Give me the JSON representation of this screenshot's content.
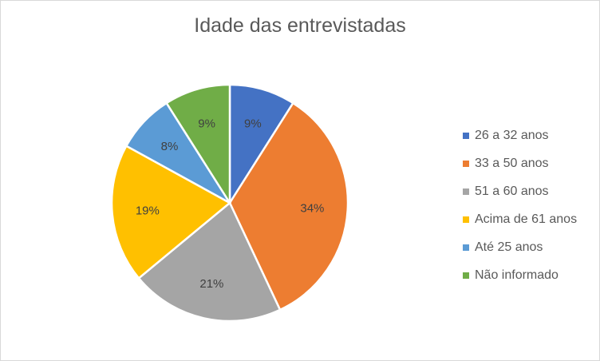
{
  "chart_data": {
    "type": "pie",
    "title": "Idade das entrevistadas",
    "slices": [
      {
        "name": "26 a 32 anos",
        "value": 9,
        "label": "9%",
        "color": "#4472C4"
      },
      {
        "name": "33 a 50 anos",
        "value": 34,
        "label": "34%",
        "color": "#ED7D31"
      },
      {
        "name": "51 a 60 anos",
        "value": 21,
        "label": "21%",
        "color": "#A5A5A5"
      },
      {
        "name": "Acima de 61 anos",
        "value": 19,
        "label": "19%",
        "color": "#FFC000"
      },
      {
        "name": "Até 25 anos",
        "value": 8,
        "label": "8%",
        "color": "#5B9BD5"
      },
      {
        "name": "Não informado",
        "value": 9,
        "label": "9%",
        "color": "#70AD47"
      }
    ],
    "legend_position": "right"
  }
}
